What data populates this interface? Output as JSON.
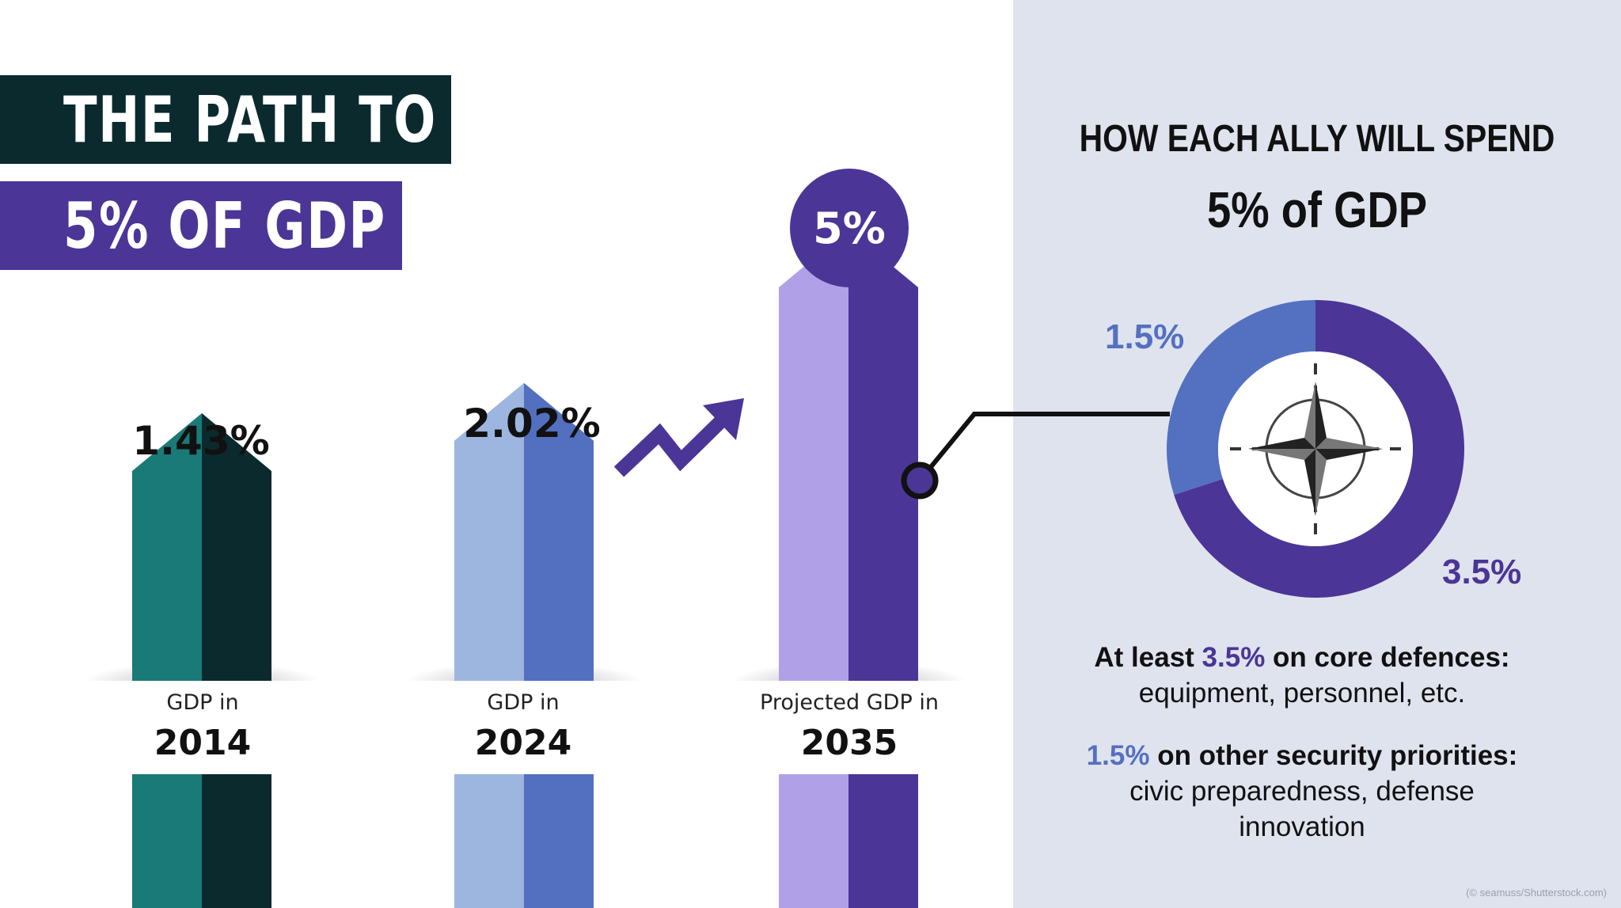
{
  "title": {
    "line1": "THE PATH TO",
    "line2": "5% OF GDP"
  },
  "colors": {
    "teal_light": "#1a7a78",
    "teal_dark": "#0b2a2e",
    "blue_light": "#9db6df",
    "blue_dark": "#5370c0",
    "purple_light": "#b0a0e8",
    "purple_dark": "#4b3596",
    "donut_core": "#4b3596",
    "donut_other": "#5470c1",
    "panel_bg": "#dfe3ee"
  },
  "chart_data": [
    {
      "type": "bar",
      "categories": [
        "2014",
        "2024",
        "2035"
      ],
      "values": [
        1.43,
        2.02,
        5
      ],
      "value_labels": [
        "1.43%",
        "2.02%",
        "5%"
      ],
      "caption_prefixes": [
        "GDP in",
        "GDP in",
        "Projected GDP in"
      ],
      "title": "",
      "xlabel": "",
      "ylabel": ""
    },
    {
      "type": "pie",
      "title": "HOW EACH ALLY WILL SPEND",
      "subtitle": "5% of GDP",
      "categories": [
        "core defences",
        "other security priorities"
      ],
      "values": [
        3.5,
        1.5
      ],
      "value_labels": [
        "3.5%",
        "1.5%"
      ],
      "center_icon": "nato-compass-star-icon"
    }
  ],
  "descriptions": [
    {
      "prefix": "At least ",
      "value": "3.5%",
      "suffix": " on core defences:",
      "detail": "equipment, personnel, etc."
    },
    {
      "prefix": "",
      "value": "1.5%",
      "suffix": " on other security priorities:",
      "detail": "civic preparedness, defense innovation"
    }
  ],
  "credit": "(© seamuss/Shutterstock.com)"
}
